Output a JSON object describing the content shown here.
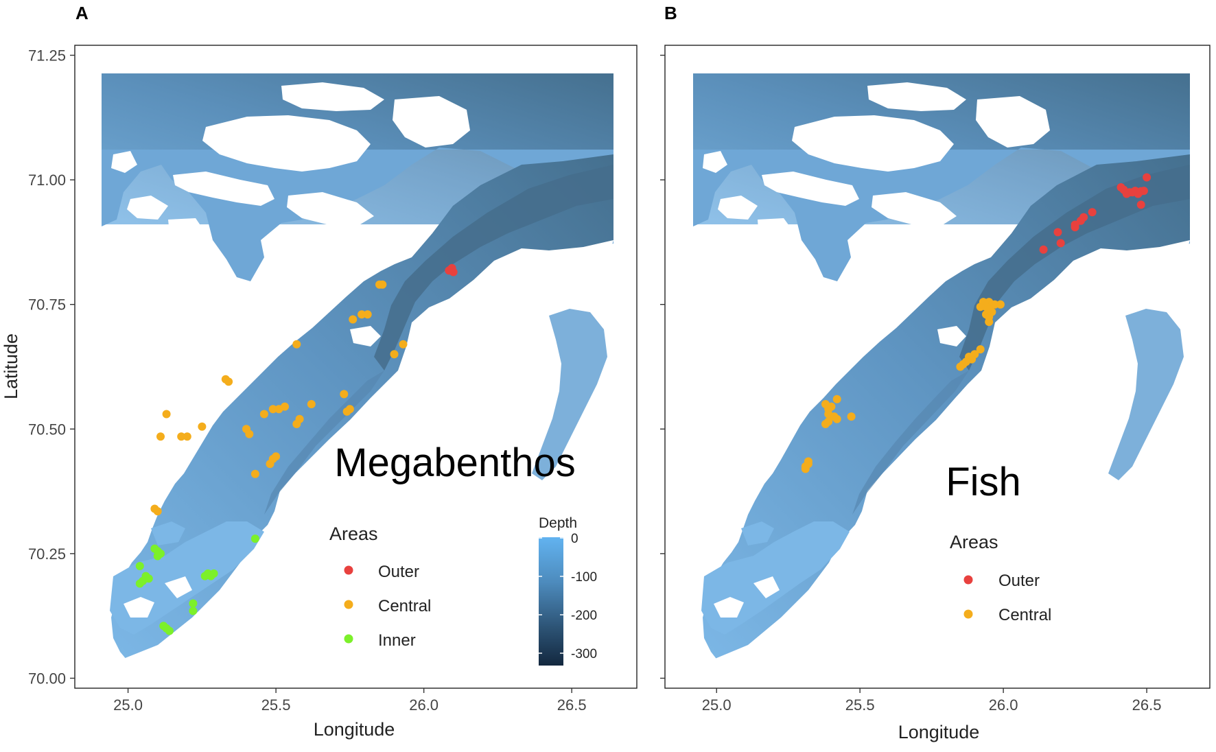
{
  "figure": {
    "panels": [
      {
        "tag": "A",
        "map_label": "Megabenthos",
        "xlabel": "Longitude",
        "ylabel": "Latitude",
        "x_ticks": [
          "25.0",
          "25.5",
          "26.0",
          "26.5"
        ],
        "y_ticks": [
          "70.00",
          "70.25",
          "70.50",
          "70.75",
          "71.00",
          "71.25"
        ],
        "show_y_tick_labels": true,
        "legend_title": "Areas",
        "legend": [
          {
            "label": "Outer",
            "color": "#e8413e"
          },
          {
            "label": "Central",
            "color": "#f4ad1c"
          },
          {
            "label": "Inner",
            "color": "#7cf02a"
          }
        ],
        "depth_scale": {
          "title": "Depth",
          "ticks": [
            "0",
            "-100",
            "-200",
            "-300"
          ]
        }
      },
      {
        "tag": "B",
        "map_label": "Fish",
        "xlabel": "Longitude",
        "ylabel": "",
        "x_ticks": [
          "25.0",
          "25.5",
          "26.0",
          "26.5"
        ],
        "y_ticks": [],
        "show_y_tick_labels": false,
        "legend_title": "Areas",
        "legend": [
          {
            "label": "Outer",
            "color": "#e8413e"
          },
          {
            "label": "Central",
            "color": "#f4ad1c"
          }
        ]
      }
    ]
  },
  "colors": {
    "water_shallow": "#7cb7e6",
    "water_mid": "#5b8fb9",
    "water_deep": "#3d6687",
    "land": "#ffffff",
    "outer": "#e8413e",
    "central": "#f4ad1c",
    "inner": "#7cf02a"
  },
  "chart_data": [
    {
      "type": "scatter",
      "panel": "A",
      "xlim": [
        24.82,
        26.72
      ],
      "ylim": [
        69.98,
        71.27
      ],
      "x_ticks": [
        25.0,
        25.5,
        26.0,
        26.5
      ],
      "y_ticks": [
        70.0,
        70.25,
        70.5,
        70.75,
        71.0,
        71.25
      ],
      "depth_range": [
        -330,
        0
      ],
      "series": [
        {
          "name": "Outer",
          "color": "#e8413e",
          "points": [
            [
              26.09,
              70.82
            ],
            [
              26.1,
              70.815
            ],
            [
              26.085,
              70.818
            ],
            [
              26.095,
              70.823
            ]
          ]
        },
        {
          "name": "Central",
          "color": "#f4ad1c",
          "points": [
            [
              25.85,
              70.79
            ],
            [
              25.86,
              70.79
            ],
            [
              25.76,
              70.72
            ],
            [
              25.79,
              70.73
            ],
            [
              25.81,
              70.73
            ],
            [
              25.57,
              70.67
            ],
            [
              25.93,
              70.67
            ],
            [
              25.9,
              70.65
            ],
            [
              25.33,
              70.6
            ],
            [
              25.34,
              70.595
            ],
            [
              25.73,
              70.57
            ],
            [
              25.62,
              70.55
            ],
            [
              25.53,
              70.545
            ],
            [
              25.49,
              70.54
            ],
            [
              25.51,
              70.54
            ],
            [
              25.75,
              70.54
            ],
            [
              25.74,
              70.535
            ],
            [
              25.46,
              70.53
            ],
            [
              25.13,
              70.53
            ],
            [
              25.58,
              70.52
            ],
            [
              25.57,
              70.51
            ],
            [
              25.25,
              70.505
            ],
            [
              25.4,
              70.5
            ],
            [
              25.41,
              70.49
            ],
            [
              25.18,
              70.485
            ],
            [
              25.2,
              70.485
            ],
            [
              25.11,
              70.485
            ],
            [
              25.5,
              70.445
            ],
            [
              25.49,
              70.44
            ],
            [
              25.48,
              70.43
            ],
            [
              25.43,
              70.41
            ],
            [
              25.09,
              70.34
            ],
            [
              25.1,
              70.335
            ]
          ]
        },
        {
          "name": "Inner",
          "color": "#7cf02a",
          "points": [
            [
              25.43,
              70.28
            ],
            [
              25.09,
              70.26
            ],
            [
              25.1,
              70.255
            ],
            [
              25.11,
              70.25
            ],
            [
              25.1,
              70.245
            ],
            [
              25.04,
              70.225
            ],
            [
              25.27,
              70.21
            ],
            [
              25.29,
              70.21
            ],
            [
              25.26,
              70.205
            ],
            [
              25.28,
              70.205
            ],
            [
              25.06,
              70.205
            ],
            [
              25.05,
              70.195
            ],
            [
              25.04,
              70.19
            ],
            [
              25.07,
              70.2
            ],
            [
              25.22,
              70.15
            ],
            [
              25.22,
              70.135
            ],
            [
              25.12,
              70.105
            ],
            [
              25.13,
              70.1
            ],
            [
              25.14,
              70.095
            ]
          ]
        }
      ]
    },
    {
      "type": "scatter",
      "panel": "B",
      "xlim": [
        24.82,
        26.72
      ],
      "ylim": [
        69.98,
        71.27
      ],
      "x_ticks": [
        25.0,
        25.5,
        26.0,
        26.5
      ],
      "y_ticks": [
        70.0,
        70.25,
        70.5,
        70.75,
        71.0,
        71.25
      ],
      "series": [
        {
          "name": "Outer",
          "color": "#e8413e",
          "points": [
            [
              26.5,
              71.005
            ],
            [
              26.41,
              70.985
            ],
            [
              26.42,
              70.98
            ],
            [
              26.44,
              70.975
            ],
            [
              26.46,
              70.978
            ],
            [
              26.48,
              70.977
            ],
            [
              26.49,
              70.978
            ],
            [
              26.43,
              70.972
            ],
            [
              26.47,
              70.972
            ],
            [
              26.45,
              70.975
            ],
            [
              26.48,
              70.95
            ],
            [
              26.31,
              70.935
            ],
            [
              26.28,
              70.925
            ],
            [
              26.27,
              70.918
            ],
            [
              26.25,
              70.91
            ],
            [
              26.25,
              70.905
            ],
            [
              26.19,
              70.895
            ],
            [
              26.2,
              70.873
            ],
            [
              26.14,
              70.86
            ]
          ]
        },
        {
          "name": "Central",
          "color": "#f4ad1c",
          "points": [
            [
              25.93,
              70.755
            ],
            [
              25.95,
              70.755
            ],
            [
              25.96,
              70.75
            ],
            [
              25.94,
              70.745
            ],
            [
              25.97,
              70.75
            ],
            [
              25.99,
              70.75
            ],
            [
              25.92,
              70.745
            ],
            [
              25.95,
              70.74
            ],
            [
              25.94,
              70.73
            ],
            [
              25.96,
              70.735
            ],
            [
              25.95,
              70.725
            ],
            [
              25.95,
              70.715
            ],
            [
              25.92,
              70.66
            ],
            [
              25.9,
              70.65
            ],
            [
              25.88,
              70.645
            ],
            [
              25.89,
              70.64
            ],
            [
              25.87,
              70.635
            ],
            [
              25.86,
              70.63
            ],
            [
              25.85,
              70.625
            ],
            [
              25.42,
              70.56
            ],
            [
              25.38,
              70.55
            ],
            [
              25.39,
              70.54
            ],
            [
              25.4,
              70.545
            ],
            [
              25.39,
              70.53
            ],
            [
              25.41,
              70.525
            ],
            [
              25.42,
              70.52
            ],
            [
              25.47,
              70.525
            ],
            [
              25.39,
              70.515
            ],
            [
              25.38,
              70.51
            ],
            [
              25.32,
              70.435
            ],
            [
              25.32,
              70.43
            ],
            [
              25.31,
              70.425
            ],
            [
              25.31,
              70.42
            ]
          ]
        }
      ]
    }
  ]
}
